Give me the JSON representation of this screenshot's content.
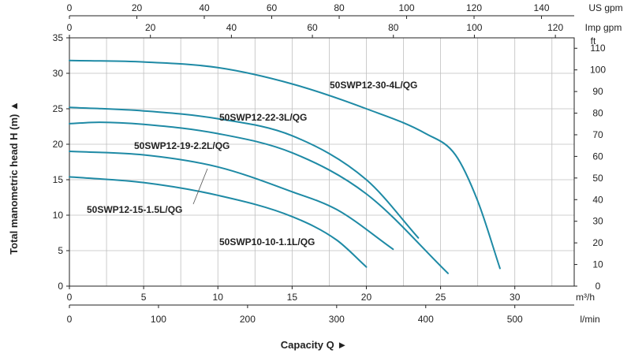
{
  "chart_data": {
    "type": "line",
    "title": "",
    "ylabel": "Total manometric head H (m) ▲",
    "xlabel": "Capacity Q ►",
    "ylim": [
      0,
      35
    ],
    "xlim": [
      0,
      34
    ],
    "y_ticks": [
      0,
      5,
      10,
      15,
      20,
      25,
      30,
      35
    ],
    "x_ticks": [
      0,
      5,
      10,
      15,
      20,
      25,
      30
    ],
    "x_unit": "m³/h",
    "grid": true,
    "secondary_axes": {
      "us_gpm": {
        "unit": "US gpm",
        "ticks": [
          0,
          20,
          40,
          60,
          80,
          100,
          120,
          140
        ],
        "per_m3h": 4.4029
      },
      "imp_gpm": {
        "unit": "Imp gpm",
        "ticks": [
          0,
          20,
          40,
          60,
          80,
          100,
          120
        ],
        "per_m3h": 3.6662
      },
      "lmin": {
        "unit": "l/min",
        "ticks": [
          0,
          100,
          200,
          300,
          400,
          500
        ],
        "per_m3h": 16.6667
      },
      "ft": {
        "unit": "ft",
        "ticks": [
          0,
          10,
          20,
          30,
          40,
          50,
          60,
          70,
          80,
          90,
          100,
          110
        ],
        "per_m": 3.28084
      }
    },
    "curve_color": "#1e8aa5",
    "series": [
      {
        "name": "50SWP12-30-4L/QG",
        "x": [
          0,
          5,
          10,
          15,
          20,
          24,
          26,
          27.5,
          29
        ],
        "y": [
          31.8,
          31.6,
          30.8,
          28.5,
          25.0,
          21.5,
          18.5,
          12.0,
          2.5
        ]
      },
      {
        "name": "50SWP12-22-3L/QG",
        "x": [
          0,
          5,
          10,
          15,
          20,
          23.5
        ],
        "y": [
          25.2,
          24.7,
          23.6,
          21.2,
          15.0,
          6.8
        ]
      },
      {
        "name": "50SWP12-19-2.2L/QG",
        "x": [
          0,
          2,
          5,
          10,
          15,
          20,
          25.5
        ],
        "y": [
          22.9,
          23.1,
          22.8,
          21.5,
          18.8,
          13.0,
          1.8
        ]
      },
      {
        "name": "50SWP12-15-1.5L/QG",
        "x": [
          0,
          5,
          10,
          15,
          18,
          21.8
        ],
        "y": [
          19.0,
          18.5,
          16.8,
          13.3,
          10.8,
          5.2
        ]
      },
      {
        "name": "50SWP10-10-1.1L/QG",
        "x": [
          0,
          5,
          10,
          15,
          18,
          20
        ],
        "y": [
          15.4,
          14.6,
          12.8,
          9.8,
          6.5,
          2.7
        ]
      }
    ]
  }
}
